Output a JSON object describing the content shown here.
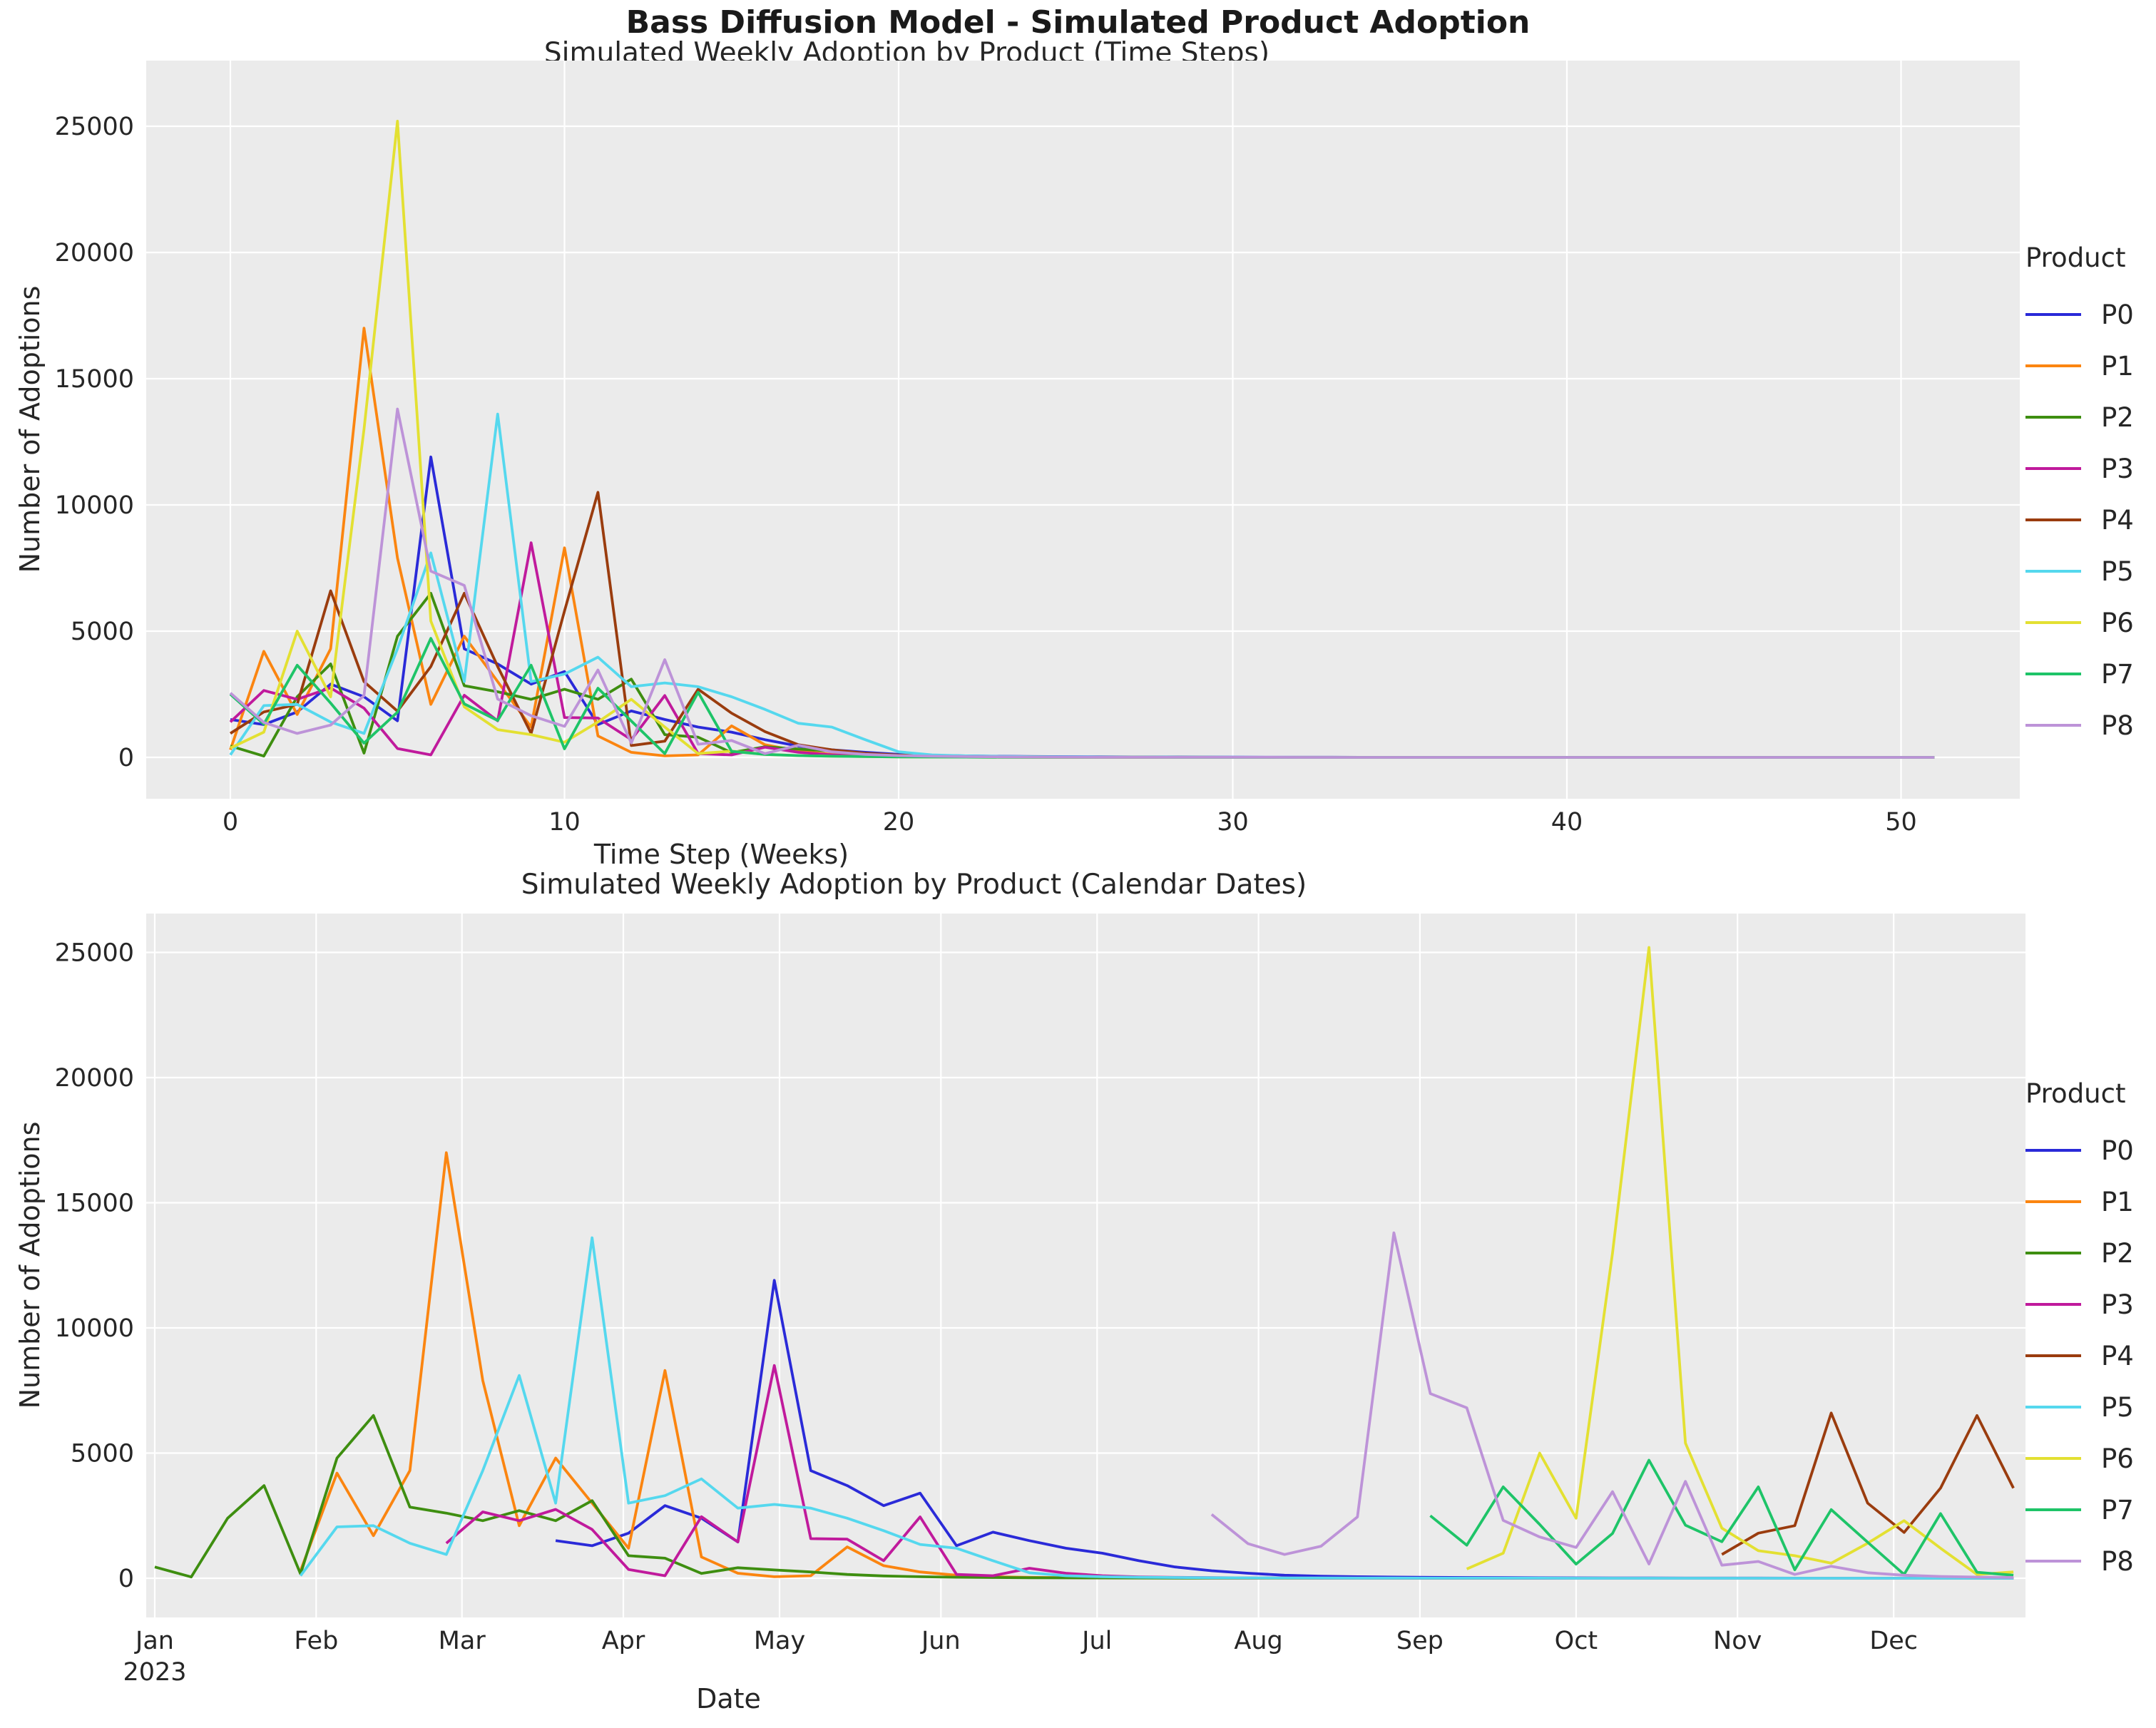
{
  "suptitle": "Bass Diffusion Model - Simulated Product Adoption",
  "legend_title": "Product",
  "colors": {
    "background": "#ffffff",
    "plot_background": "#ebebeb",
    "grid": "#ffffff",
    "text": "#262626"
  },
  "chart_data": [
    {
      "type": "line",
      "title": "Simulated Weekly Adoption by Product (Time Steps)",
      "xlabel": "Time Step (Weeks)",
      "ylabel": "Number of Adoptions",
      "x_unit": "week index 0-51, weekly points",
      "x_ticks": [
        0,
        10,
        20,
        30,
        40,
        50
      ],
      "y_ticks": [
        0,
        5000,
        10000,
        15000,
        20000,
        25000
      ],
      "xlim": [
        -2.5,
        53.5
      ],
      "ylim": [
        -1600,
        27600
      ],
      "grid": true,
      "legend_position": "right of plot",
      "series": [
        {
          "name": "P0",
          "color": "#2a2ad8",
          "values": [
            1500,
            1300,
            1800,
            2900,
            2400,
            1450,
            11900,
            4300,
            3700,
            2900,
            3400,
            1300,
            1840,
            1500,
            1200,
            1000,
            700,
            450,
            300,
            200,
            120,
            80,
            60,
            45,
            35,
            28,
            22,
            18,
            14,
            11,
            9,
            7,
            6,
            5,
            4,
            3,
            3,
            2,
            2,
            2,
            1,
            1,
            1,
            1,
            1,
            1,
            1,
            1,
            1,
            1,
            1,
            1
          ]
        },
        {
          "name": "P1",
          "color": "#fb8510",
          "values": [
            300,
            4200,
            1700,
            4300,
            17000,
            7900,
            2100,
            4800,
            3000,
            1200,
            8300,
            850,
            200,
            60,
            100,
            1250,
            500,
            250,
            120,
            60,
            35,
            25,
            18,
            14,
            10,
            8,
            6,
            5,
            4,
            3,
            2,
            2,
            1,
            1,
            1,
            1,
            1,
            1,
            1,
            1,
            1,
            1,
            1,
            1,
            1,
            1,
            1,
            1,
            1,
            1,
            1,
            1
          ]
        },
        {
          "name": "P2",
          "color": "#3e8e10",
          "values": [
            450,
            50,
            2400,
            3700,
            170,
            4800,
            6500,
            2840,
            2600,
            2300,
            2700,
            2300,
            3100,
            900,
            800,
            190,
            420,
            330,
            250,
            150,
            90,
            60,
            40,
            28,
            20,
            15,
            11,
            8,
            6,
            5,
            4,
            3,
            2,
            2,
            1,
            1,
            1,
            1,
            1,
            1,
            1,
            1,
            1,
            1,
            1,
            1,
            1,
            1,
            1,
            1,
            1,
            1
          ]
        },
        {
          "name": "P3",
          "color": "#c01a9c",
          "values": [
            1400,
            2650,
            2300,
            2750,
            1950,
            350,
            100,
            2460,
            1450,
            8500,
            1580,
            1560,
            700,
            2450,
            150,
            100,
            400,
            200,
            100,
            55,
            35,
            22,
            15,
            10,
            7,
            5,
            4,
            3,
            2,
            2,
            1,
            1,
            1,
            1,
            1,
            1,
            1,
            1,
            1,
            1,
            1,
            1,
            1,
            1,
            1,
            1,
            1,
            1,
            1,
            1,
            1,
            1
          ]
        },
        {
          "name": "P4",
          "color": "#9a3c0e",
          "values": [
            950,
            1800,
            2100,
            6600,
            3000,
            1830,
            3600,
            6500,
            3600,
            950,
            5800,
            10500,
            470,
            640,
            2700,
            1750,
            1020,
            500,
            300,
            160,
            90,
            55,
            35,
            22,
            15,
            10,
            7,
            5,
            4,
            3,
            2,
            2,
            1,
            1,
            1,
            1,
            1,
            1,
            1,
            1,
            1,
            1,
            1,
            1,
            1,
            1,
            1,
            1,
            1,
            1,
            1,
            1
          ]
        },
        {
          "name": "P5",
          "color": "#55d8ee",
          "values": [
            100,
            2050,
            2100,
            1400,
            950,
            4300,
            8100,
            3000,
            13600,
            3000,
            3300,
            3970,
            2800,
            2950,
            2800,
            2400,
            1900,
            1350,
            1200,
            700,
            220,
            100,
            60,
            40,
            28,
            20,
            15,
            11,
            8,
            6,
            5,
            4,
            3,
            2,
            2,
            1,
            1,
            1,
            1,
            1,
            1,
            1,
            1,
            1,
            1,
            1,
            1,
            1,
            1,
            1,
            1,
            1
          ]
        },
        {
          "name": "P6",
          "color": "#e3e032",
          "values": [
            370,
            1000,
            5000,
            2400,
            13000,
            25200,
            5400,
            2000,
            1100,
            900,
            600,
            1400,
            2300,
            1200,
            150,
            250,
            120,
            70,
            45,
            30,
            20,
            14,
            10,
            7,
            5,
            4,
            3,
            2,
            2,
            1,
            1,
            1,
            1,
            1,
            1,
            1,
            1,
            1,
            1,
            1,
            1,
            1,
            1,
            1,
            1,
            1,
            1,
            1,
            1,
            1,
            1,
            1
          ]
        },
        {
          "name": "P7",
          "color": "#1ec468",
          "values": [
            2500,
            1320,
            3650,
            2150,
            565,
            1790,
            4715,
            2120,
            1460,
            3650,
            340,
            2740,
            1440,
            150,
            2580,
            240,
            120,
            70,
            45,
            30,
            20,
            14,
            10,
            7,
            5,
            4,
            3,
            2,
            2,
            1,
            1,
            1,
            1,
            1,
            1,
            1,
            1,
            1,
            1,
            1,
            1,
            1,
            1,
            1,
            1,
            1,
            1,
            1,
            1,
            1,
            1,
            1
          ]
        },
        {
          "name": "P8",
          "color": "#bd93d8",
          "values": [
            2550,
            1380,
            950,
            1280,
            2450,
            13800,
            7375,
            6810,
            2310,
            1650,
            1230,
            3460,
            570,
            3870,
            520,
            670,
            150,
            480,
            220,
            120,
            70,
            45,
            30,
            20,
            14,
            10,
            7,
            5,
            4,
            3,
            2,
            2,
            1,
            1,
            1,
            1,
            1,
            1,
            1,
            1,
            1,
            1,
            1,
            1,
            1,
            1,
            1,
            1,
            1,
            1,
            1,
            1
          ]
        }
      ]
    },
    {
      "type": "line",
      "title": "Simulated Weekly Adoption by Product (Calendar Dates)",
      "xlabel": "Date",
      "ylabel": "Number of Adoptions",
      "x_unit": "calendar weeks of 2023; each product plots the same weekly values as the time-step chart, shifted to its launch week",
      "x_tick_labels": [
        "Jan",
        "Feb",
        "Mar",
        "Apr",
        "May",
        "Jun",
        "Jul",
        "Aug",
        "Sep",
        "Oct",
        "Nov",
        "Dec"
      ],
      "x_first_tick_year": "2023",
      "y_ticks": [
        0,
        5000,
        10000,
        15000,
        20000,
        25000
      ],
      "grid": true,
      "legend_position": "right of plot",
      "series": [
        {
          "name": "P0",
          "launch_week": 11,
          "launch_date": "2023-03-19"
        },
        {
          "name": "P1",
          "launch_week": 4,
          "launch_date": "2023-01-29"
        },
        {
          "name": "P2",
          "launch_week": 0,
          "launch_date": "2023-01-01"
        },
        {
          "name": "P3",
          "launch_week": 8,
          "launch_date": "2023-02-26"
        },
        {
          "name": "P4",
          "launch_week": 43,
          "launch_date": "2023-10-29"
        },
        {
          "name": "P5",
          "launch_week": 4,
          "launch_date": "2023-01-29"
        },
        {
          "name": "P6",
          "launch_week": 36,
          "launch_date": "2023-09-10"
        },
        {
          "name": "P7",
          "launch_week": 35,
          "launch_date": "2023-09-03"
        },
        {
          "name": "P8",
          "launch_week": 29,
          "launch_date": "2023-07-23"
        }
      ]
    }
  ]
}
